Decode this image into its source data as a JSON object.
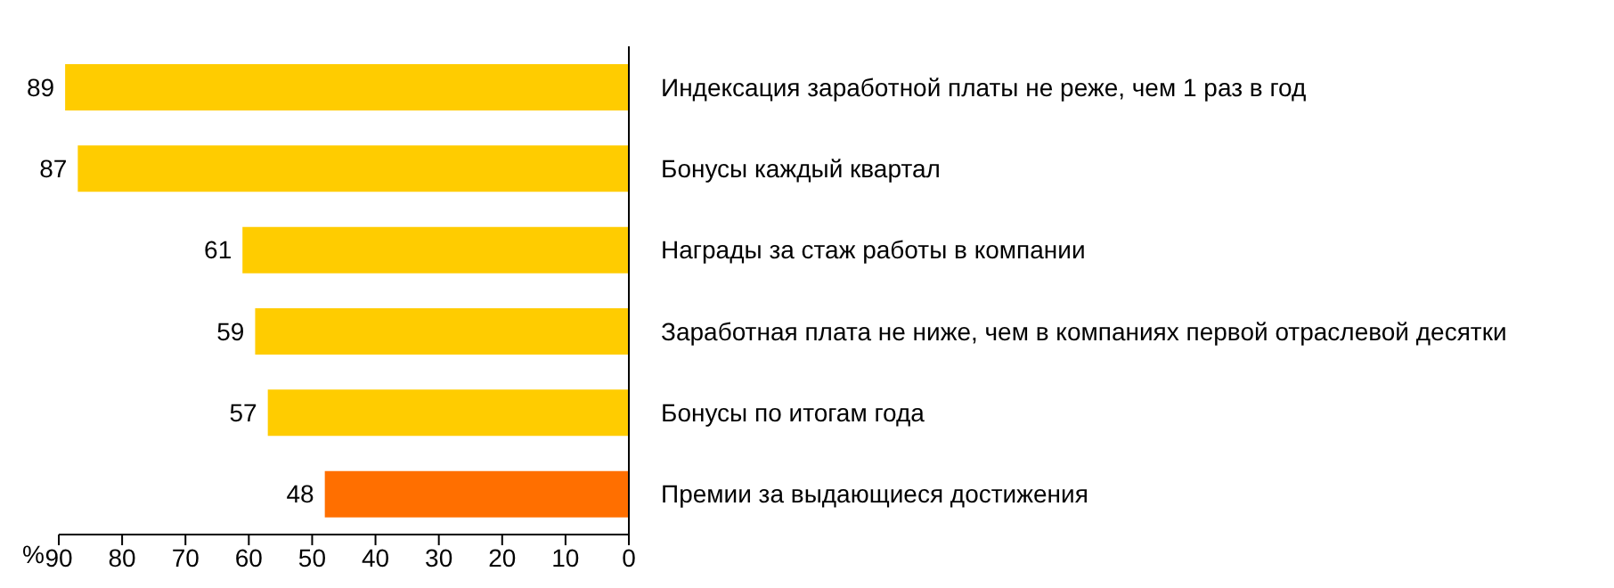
{
  "chart_data": {
    "type": "bar",
    "orientation": "horizontal",
    "xlabel": "%",
    "categories": [
      "Индексация заработной платы не реже, чем 1 раз в год",
      "Бонусы каждый квартал",
      "Награды за стаж работы в компании",
      "Заработная плата не ниже, чем в компаниях первой отраслевой десятки",
      "Бонусы по итогам года",
      "Премии за выдающиеся достижения"
    ],
    "values": [
      89,
      87,
      61,
      59,
      57,
      48
    ],
    "colors": [
      "#ffcc00",
      "#ffcc00",
      "#ffcc00",
      "#ffcc00",
      "#ffcc00",
      "#ff6f00"
    ],
    "xlim": [
      90,
      0
    ],
    "xticks": [
      90,
      80,
      70,
      60,
      50,
      40,
      30,
      20,
      10,
      0
    ],
    "data_labels": true
  }
}
